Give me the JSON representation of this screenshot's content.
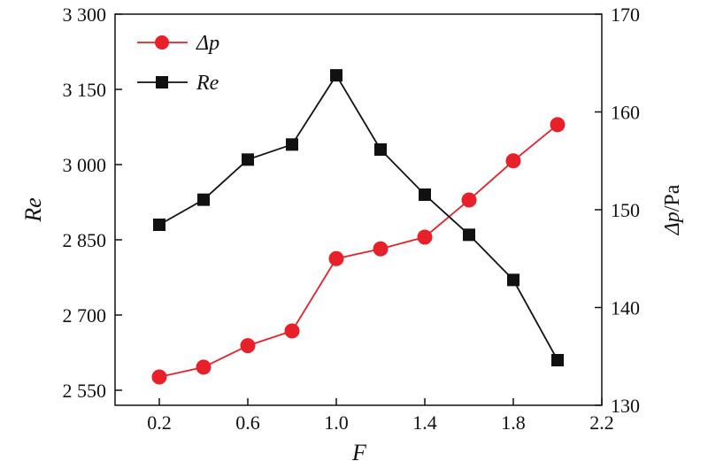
{
  "chart_data": {
    "type": "line",
    "x": [
      0.2,
      0.4,
      0.6,
      0.8,
      1.0,
      1.2,
      1.4,
      1.6,
      1.8,
      2.0
    ],
    "xlabel": "F",
    "xlim": [
      0.0,
      2.2
    ],
    "xticks": [
      0.2,
      0.6,
      1.0,
      1.4,
      1.8,
      2.2
    ],
    "xtick_labels": [
      "0.2",
      "0.6",
      "1.0",
      "1.4",
      "1.8",
      "2.2"
    ],
    "y_left": {
      "label": "Re",
      "lim": [
        2520,
        3300
      ],
      "ticks": [
        2550,
        2700,
        2850,
        3000,
        3150,
        3300
      ],
      "tick_labels": [
        "2 550",
        "2 700",
        "2 850",
        "3 000",
        "3 150",
        "3 300"
      ]
    },
    "y_right": {
      "label_main": "Δp",
      "label_unit": "/Pa",
      "lim": [
        130,
        170
      ],
      "ticks": [
        130,
        140,
        150,
        160,
        170
      ],
      "tick_labels": [
        "130",
        "140",
        "150",
        "160",
        "170"
      ]
    },
    "series": [
      {
        "name": "Δp",
        "axis": "right",
        "color": "#e8202a",
        "marker": "circle",
        "values": [
          132.9,
          133.9,
          136.1,
          137.6,
          145.0,
          146.0,
          147.2,
          151.0,
          155.0,
          158.7
        ]
      },
      {
        "name": "Re",
        "axis": "left",
        "color": "#111111",
        "marker": "square",
        "values": [
          2880,
          2930,
          3010,
          3040,
          3178,
          3030,
          2940,
          2860,
          2770,
          2610
        ]
      }
    ],
    "legend": {
      "placement": "top-left",
      "entries": [
        "Δp",
        "Re"
      ]
    },
    "grid": false
  }
}
